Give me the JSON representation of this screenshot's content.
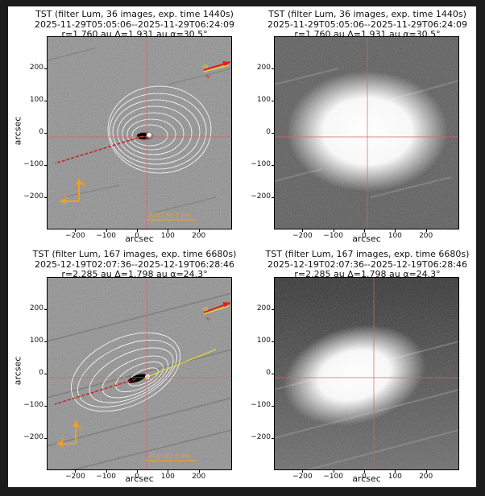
{
  "panels": [
    {
      "title_line1": "TST (filter Lum, 36 images, exp. time 1440s)",
      "title_line2": "2025-11-29T05:05:06--2025-11-29T06:24:09",
      "title_line3": "r=1.760 au Δ=1.931 au α=30.5°",
      "xlabel": "arcsec",
      "ylabel": "arcsec",
      "scale_label": "224130.5 km",
      "kind": "processed"
    },
    {
      "title_line1": "TST (filter Lum, 36 images, exp. time 1440s)",
      "title_line2": "2025-11-29T05:05:06--2025-11-29T06:24:09",
      "title_line3": "r=1.760 au Δ=1.931 au α=30.5°",
      "xlabel": "arcsec",
      "ylabel": "",
      "kind": "raw"
    },
    {
      "title_line1": "TST (filter Lum, 167 images, exp. time 6680s)",
      "title_line2": "2025-12-19T02:07:36--2025-12-19T06:28:46",
      "title_line3": "r=2.285 au Δ=1.798 au α=24.3°",
      "xlabel": "arcsec",
      "ylabel": "arcsec",
      "scale_label": "208591.5 km",
      "kind": "processed"
    },
    {
      "title_line1": "TST (filter Lum, 167 images, exp. time 6680s)",
      "title_line2": "2025-12-19T02:07:36--2025-12-19T06:28:46",
      "title_line3": "r=2.285 au Δ=1.798 au α=24.3°",
      "xlabel": "arcsec",
      "ylabel": "",
      "kind": "raw"
    }
  ],
  "axis": {
    "xticks": [
      -200,
      -100,
      0,
      100,
      200
    ],
    "yticks": [
      200,
      100,
      0,
      -100,
      -200
    ],
    "range": [
      -300,
      300
    ]
  },
  "compass": {
    "north": "N",
    "east": "E"
  },
  "direction_labels": {
    "sun": "-⊙",
    "velocity": "-v"
  },
  "colors": {
    "crosshair": "#e06060",
    "contour": "#ffffff",
    "compass": "#f0a020",
    "scale": "#f0a020",
    "sun_arrow": "#e02020",
    "velocity_arrow": "#f0e020"
  }
}
